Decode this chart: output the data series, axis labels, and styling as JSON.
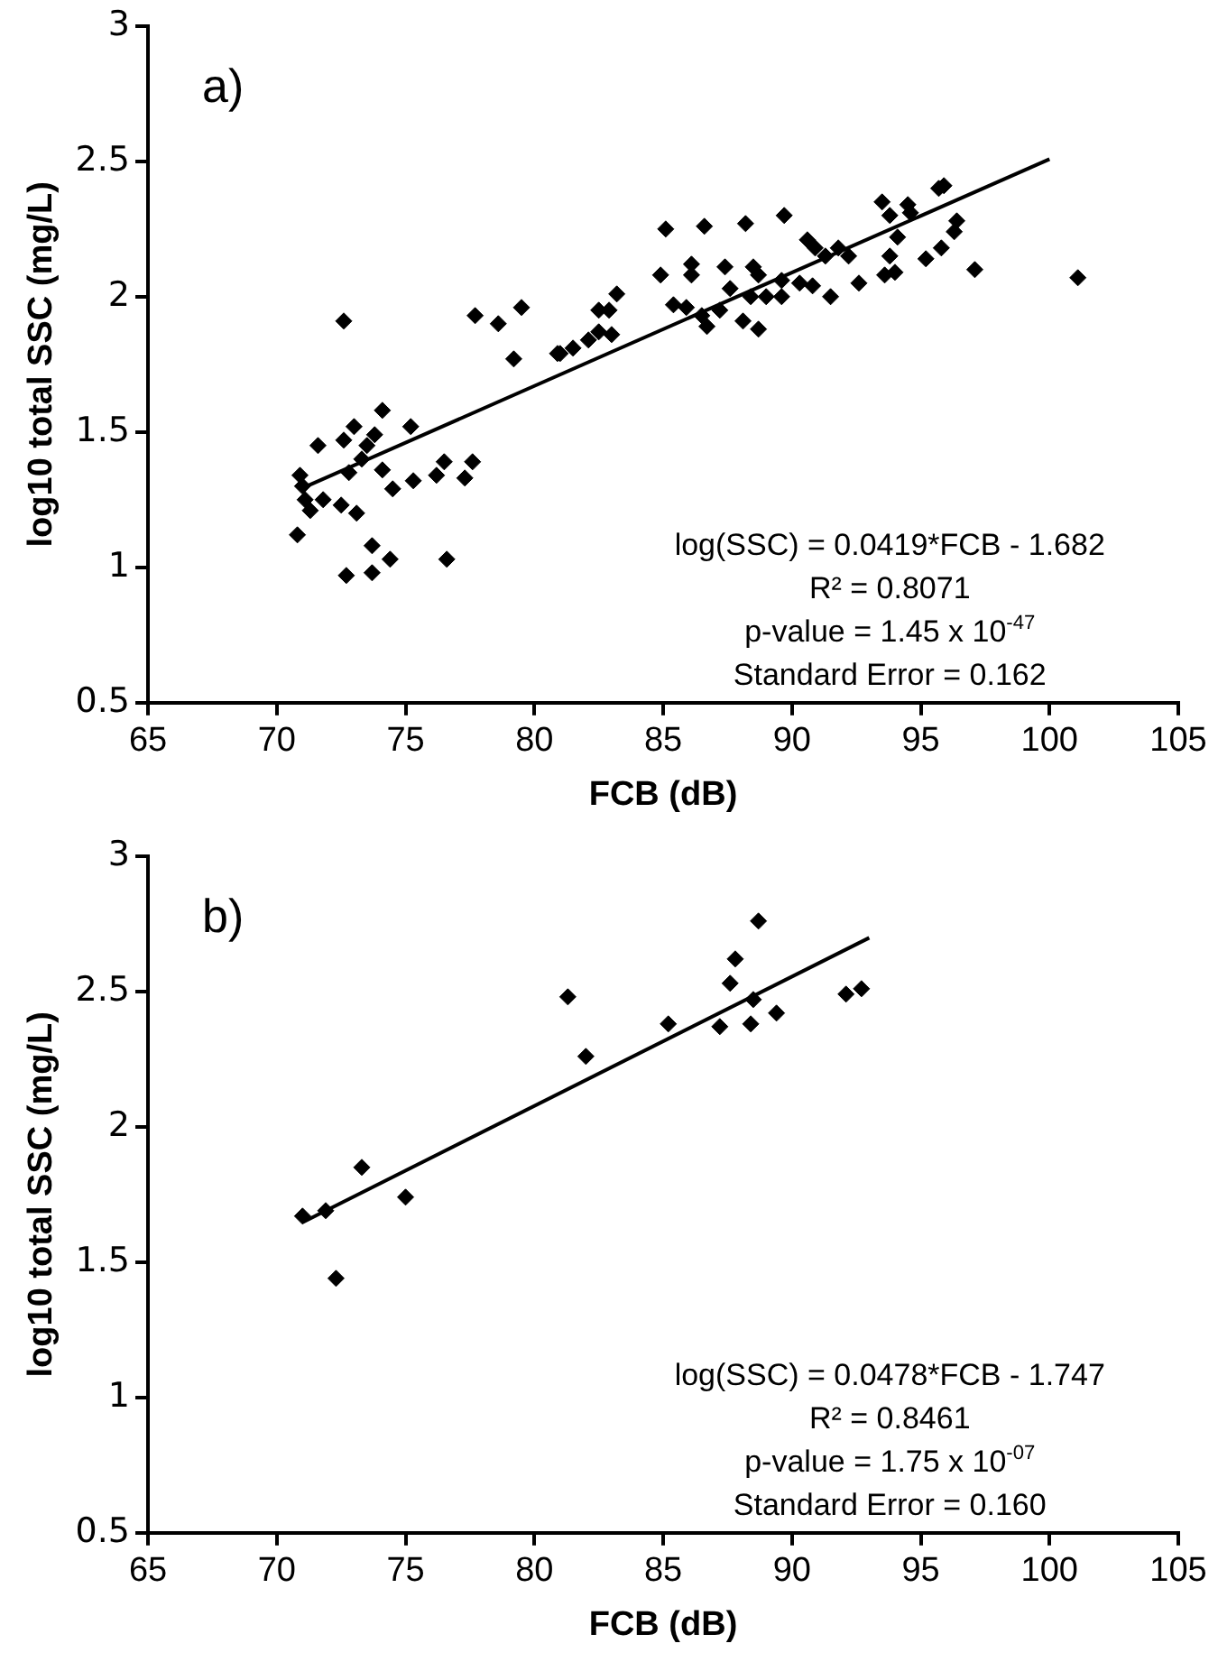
{
  "chart_data": [
    {
      "type": "scatter",
      "xlabel": "FCB (dB)",
      "ylabel": "log10 total SSC (mg/L)",
      "xlim": [
        65,
        105
      ],
      "ylim": [
        0.5,
        3
      ],
      "xticks": [
        65,
        70,
        75,
        80,
        85,
        90,
        95,
        100,
        105
      ],
      "yticks": [
        0.5,
        1,
        1.5,
        2,
        2.5,
        3
      ],
      "grid": false,
      "legend": false,
      "annotations": [
        "a)",
        "log(SSC) = 0.0419*FCB - 1.682",
        "R² = 0.8071",
        "p-value = 1.45 x 10$^{-47}$",
        "Standard Error = 0.162"
      ],
      "series": [
        {
          "type": "scatter",
          "color": "#000000",
          "marker": "diamond",
          "x": [
            72.6,
            77.7,
            78.6,
            79.5,
            79.2,
            80.9,
            74.1,
            73.0,
            75.2,
            71.6,
            72.6,
            73.8,
            73.5,
            73.3,
            74.1,
            72.8,
            70.9,
            71.0,
            71.1,
            71.8,
            71.3,
            72.5,
            73.1,
            74.5,
            75.3,
            76.5,
            76.2,
            77.6,
            77.3,
            70.8,
            73.7,
            74.4,
            73.7,
            72.7,
            76.6,
            81.0,
            81.5,
            82.1,
            82.5,
            83.0,
            82.5,
            82.9,
            83.2,
            85.1,
            86.6,
            88.2,
            89.7,
            84.9,
            86.1,
            86.1,
            85.4,
            85.9,
            86.5,
            86.7,
            87.2,
            87.4,
            87.6,
            88.1,
            88.7,
            88.5,
            88.7,
            88.4,
            89.0,
            89.6,
            89.6,
            90.3,
            90.8,
            90.6,
            90.9,
            91.3,
            91.8,
            92.2,
            91.5,
            92.6,
            93.5,
            93.8,
            94.5,
            94.6,
            95.7,
            95.9,
            94.1,
            93.8,
            93.6,
            94.0,
            95.2,
            95.8,
            96.3,
            96.4,
            97.1,
            101.1
          ],
          "values": [
            1.91,
            1.93,
            1.9,
            1.96,
            1.77,
            1.79,
            1.58,
            1.52,
            1.52,
            1.45,
            1.47,
            1.49,
            1.45,
            1.4,
            1.36,
            1.35,
            1.34,
            1.3,
            1.25,
            1.25,
            1.21,
            1.23,
            1.2,
            1.29,
            1.32,
            1.39,
            1.34,
            1.39,
            1.33,
            1.12,
            1.08,
            1.03,
            0.98,
            0.97,
            1.03,
            1.79,
            1.81,
            1.84,
            1.87,
            1.86,
            1.95,
            1.95,
            2.01,
            2.25,
            2.26,
            2.27,
            2.3,
            2.08,
            2.12,
            2.08,
            1.97,
            1.96,
            1.93,
            1.89,
            1.95,
            2.11,
            2.03,
            1.91,
            1.88,
            2.11,
            2.08,
            2.0,
            2.0,
            2.06,
            2.0,
            2.05,
            2.04,
            2.21,
            2.18,
            2.15,
            2.18,
            2.15,
            2.0,
            2.05,
            2.35,
            2.3,
            2.34,
            2.31,
            2.4,
            2.41,
            2.22,
            2.15,
            2.08,
            2.09,
            2.14,
            2.18,
            2.24,
            2.28,
            2.1,
            2.07
          ]
        },
        {
          "type": "line",
          "color": "#000000",
          "marker": "none",
          "x": [
            71,
            100
          ],
          "values": [
            1.293,
            2.508
          ]
        }
      ]
    },
    {
      "type": "scatter",
      "xlabel": "FCB (dB)",
      "ylabel": "log10 total SSC (mg/L)",
      "xlim": [
        65,
        105
      ],
      "ylim": [
        0.5,
        3
      ],
      "xticks": [
        65,
        70,
        75,
        80,
        85,
        90,
        95,
        100,
        105
      ],
      "yticks": [
        0.5,
        1,
        1.5,
        2,
        2.5,
        3
      ],
      "grid": false,
      "legend": false,
      "annotations": [
        "b)",
        "log(SSC) = 0.0478*FCB - 1.747",
        "R² = 0.8461",
        "p-value = 1.75 x 10$^{-07}$",
        "Standard Error = 0.160"
      ],
      "series": [
        {
          "type": "scatter",
          "color": "#000000",
          "marker": "diamond",
          "x": [
            81.3,
            87.6,
            88.5,
            92.1,
            92.7,
            85.2,
            87.2,
            88.4,
            89.4,
            82.0,
            73.3,
            75.0,
            71.0,
            71.9,
            72.3,
            87.8,
            88.7
          ],
          "values": [
            2.48,
            2.53,
            2.47,
            2.49,
            2.51,
            2.38,
            2.37,
            2.38,
            2.42,
            2.26,
            1.85,
            1.74,
            1.67,
            1.69,
            1.44,
            2.62,
            2.76
          ]
        },
        {
          "type": "line",
          "color": "#000000",
          "marker": "none",
          "x": [
            71,
            93
          ],
          "values": [
            1.647,
            2.698
          ]
        }
      ]
    }
  ]
}
